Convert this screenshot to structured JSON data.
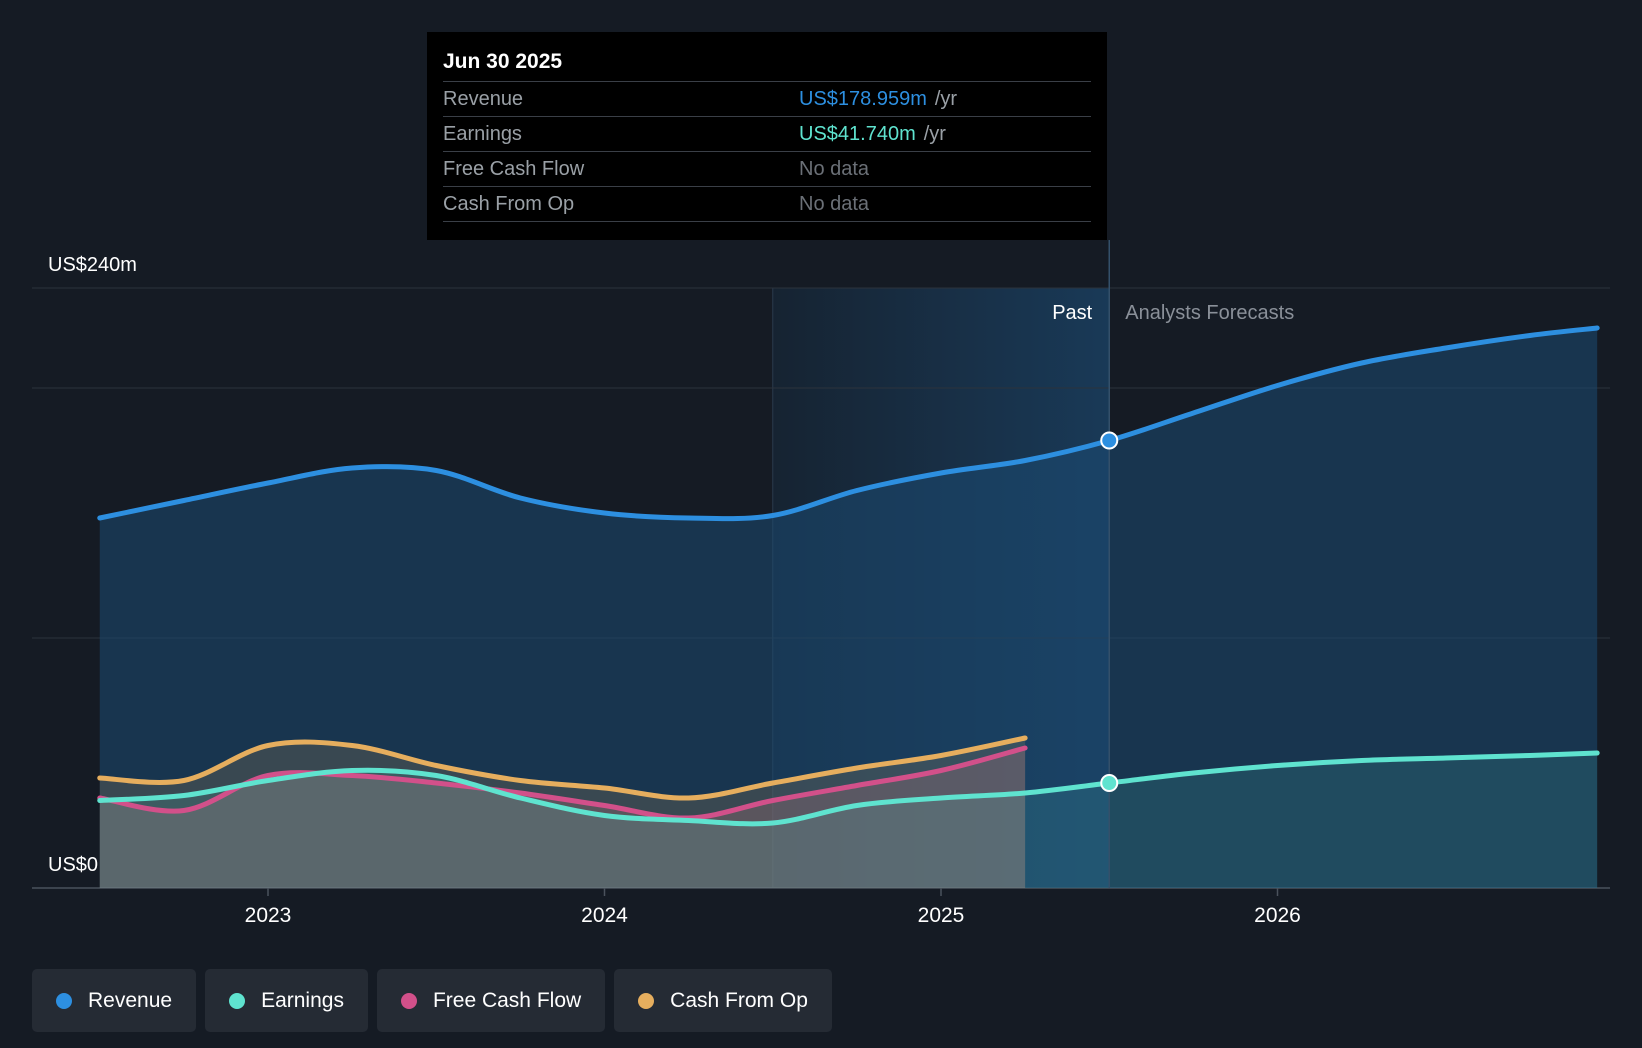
{
  "tooltip": {
    "date": "Jun 30 2025",
    "rows": [
      {
        "label": "Revenue",
        "value": "US$178.959m",
        "unit": "/yr",
        "color": "#2d8fe0"
      },
      {
        "label": "Earnings",
        "value": "US$41.740m",
        "unit": "/yr",
        "color": "#5fe3cf"
      },
      {
        "label": "Free Cash Flow",
        "value": "No data",
        "unit": "",
        "color": "#6b7077"
      },
      {
        "label": "Cash From Op",
        "value": "No data",
        "unit": "",
        "color": "#6b7077"
      }
    ]
  },
  "legend": [
    {
      "label": "Revenue",
      "color": "#2d8fe0"
    },
    {
      "label": "Earnings",
      "color": "#5fe3cf"
    },
    {
      "label": "Free Cash Flow",
      "color": "#d2508a"
    },
    {
      "label": "Cash From Op",
      "color": "#e6ae5e"
    }
  ],
  "chart_data": {
    "type": "area",
    "title": "",
    "y_top_label": "US$240m",
    "y_bottom_label": "US$0",
    "ylim": [
      0,
      240
    ],
    "xlim": [
      2022.5,
      2026.95
    ],
    "x_ticks": [
      2023,
      2024,
      2025,
      2026
    ],
    "x_tick_labels": [
      "2023",
      "2024",
      "2025",
      "2026"
    ],
    "gridlines": [
      0,
      100,
      200,
      240
    ],
    "past_label": "Past",
    "forecast_label": "Analysts Forecasts",
    "divider_x": 2025.5,
    "shade_start_x": 2024.5,
    "marker_x": 2025.5,
    "series": [
      {
        "name": "Revenue",
        "color": "#2d8fe0",
        "x": [
          2022.5,
          2022.75,
          2023.0,
          2023.25,
          2023.5,
          2023.75,
          2024.0,
          2024.25,
          2024.5,
          2024.75,
          2025.0,
          2025.25,
          2025.5,
          2025.75,
          2026.0,
          2026.25,
          2026.5,
          2026.75,
          2026.95
        ],
        "values": [
          148,
          155,
          162,
          168,
          167,
          156,
          150,
          148,
          149,
          159,
          166,
          171,
          179,
          190,
          201,
          210,
          216,
          221,
          224
        ]
      },
      {
        "name": "Earnings",
        "color": "#5fe3cf",
        "x": [
          2022.5,
          2022.75,
          2023.0,
          2023.25,
          2023.5,
          2023.75,
          2024.0,
          2024.25,
          2024.5,
          2024.75,
          2025.0,
          2025.25,
          2025.5,
          2025.75,
          2026.0,
          2026.25,
          2026.5,
          2026.75,
          2026.95
        ],
        "values": [
          35,
          37,
          43,
          47,
          45,
          36,
          29,
          27,
          26,
          33,
          36,
          38,
          42,
          46,
          49,
          51,
          52,
          53,
          54
        ]
      },
      {
        "name": "Free Cash Flow",
        "color": "#d2508a",
        "x": [
          2022.5,
          2022.75,
          2023.0,
          2023.25,
          2023.5,
          2023.75,
          2024.0,
          2024.25,
          2024.5,
          2024.75,
          2025.0,
          2025.25
        ],
        "values": [
          36,
          31,
          45,
          45,
          42,
          38,
          33,
          28,
          35,
          41,
          47,
          56
        ]
      },
      {
        "name": "Cash From Op",
        "color": "#e6ae5e",
        "x": [
          2022.5,
          2022.75,
          2023.0,
          2023.25,
          2023.5,
          2023.75,
          2024.0,
          2024.25,
          2024.5,
          2024.75,
          2025.0,
          2025.25
        ],
        "values": [
          44,
          43,
          57,
          57,
          49,
          43,
          40,
          36,
          42,
          48,
          53,
          60
        ]
      }
    ]
  }
}
